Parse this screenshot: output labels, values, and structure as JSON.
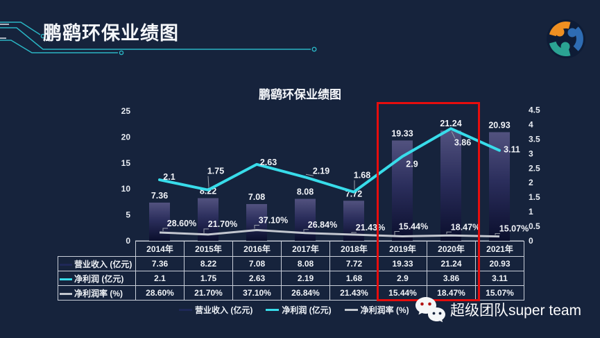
{
  "colors": {
    "background": "#16233c",
    "accent_teal": "#2ab5c4",
    "bar_gradient_top": "#52527f",
    "bar_gradient_mid": "#2b2e5c",
    "bar_gradient_bottom": "#0a0e2c",
    "net_profit_line": "#38dcea",
    "margin_line": "#c3c7cf",
    "revenue_swatch": "#1e2857",
    "highlight_red": "#e60d0d",
    "table_border": "#c9cfd9",
    "axis_text": "#e8ecf2"
  },
  "header": {
    "title": "鹏鹞环保业绩图",
    "logo_icon": "team-rings-logo"
  },
  "chart_data": {
    "type": "bar+line combo",
    "title": "鹏鹞环保业绩图",
    "categories": [
      "2014年",
      "2015年",
      "2016年",
      "2017年",
      "2018年",
      "2019年",
      "2020年",
      "2021年"
    ],
    "series": [
      {
        "name": "营业收入 (亿元)",
        "type": "bar",
        "axis": "left",
        "values": [
          7.36,
          8.22,
          7.08,
          8.08,
          7.72,
          19.33,
          21.24,
          20.93
        ],
        "labels": [
          "7.36",
          "8.22",
          "7.08",
          "8.08",
          "7.72",
          "19.33",
          "21.24",
          "20.93"
        ]
      },
      {
        "name": "净利润 (亿元)",
        "type": "line",
        "axis": "right",
        "values": [
          2.1,
          1.75,
          2.63,
          2.19,
          1.68,
          2.9,
          3.86,
          3.11
        ],
        "labels": [
          "2.1",
          "1.75",
          "2.63",
          "2.19",
          "1.68",
          "2.9",
          "3.86",
          "3.11"
        ]
      },
      {
        "name": "净利润率 (%)",
        "type": "line",
        "axis": "right_as_fraction",
        "values": [
          28.6,
          21.7,
          37.1,
          26.84,
          21.43,
          15.44,
          18.47,
          15.07
        ],
        "labels": [
          "28.60%",
          "21.70%",
          "37.10%",
          "26.84%",
          "21.43%",
          "15.44%",
          "18.47%",
          "15.07%"
        ]
      }
    ],
    "left_axis": {
      "ticks": [
        "0",
        "5",
        "10",
        "15",
        "20",
        "25"
      ],
      "min": 0,
      "max": 25
    },
    "right_axis": {
      "ticks": [
        "0",
        "0.5",
        "1",
        "1.5",
        "2",
        "2.5",
        "3",
        "3.5",
        "4",
        "4.5"
      ],
      "min": 0,
      "max": 4.5
    },
    "grid": false,
    "legend_position": "bottom",
    "highlight": {
      "categories": [
        "2019年",
        "2020年"
      ],
      "style": "red-box"
    }
  },
  "table": {
    "corner": "",
    "column_headers": [
      "2014年",
      "2015年",
      "2016年",
      "2017年",
      "2018年",
      "2019年",
      "2020年",
      "2021年"
    ],
    "rows": [
      {
        "label": "营业收入 (亿元)",
        "swatch": "revenue_swatch",
        "cells": [
          "7.36",
          "8.22",
          "7.08",
          "8.08",
          "7.72",
          "19.33",
          "21.24",
          "20.93"
        ]
      },
      {
        "label": "净利润 (亿元)",
        "swatch": "net_profit_line",
        "cells": [
          "2.1",
          "1.75",
          "2.63",
          "2.19",
          "1.68",
          "2.9",
          "3.86",
          "3.11"
        ]
      },
      {
        "label": "净利润率 (%)",
        "swatch": "margin_line",
        "cells": [
          "28.60%",
          "21.70%",
          "37.10%",
          "26.84%",
          "21.43%",
          "15.44%",
          "18.47%",
          "15.07%"
        ]
      }
    ]
  },
  "legend": {
    "items": [
      {
        "label": "营业收入 (亿元)",
        "swatch": "revenue_swatch"
      },
      {
        "label": "净利润 (亿元)",
        "swatch": "net_profit_line"
      },
      {
        "label": "净利润率 (%)",
        "swatch": "margin_line"
      }
    ]
  },
  "footer": {
    "brand": "超级团队super team",
    "icon": "wechat-icon"
  }
}
